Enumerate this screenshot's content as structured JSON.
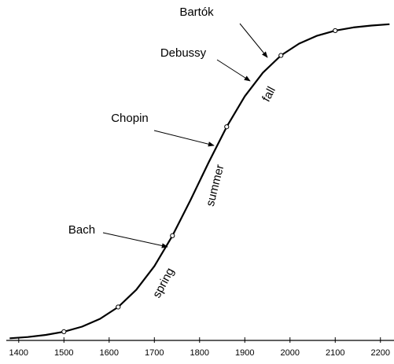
{
  "chart_data": {
    "type": "line",
    "x": [
      1380,
      1420,
      1460,
      1500,
      1540,
      1580,
      1620,
      1660,
      1700,
      1740,
      1780,
      1820,
      1860,
      1900,
      1940,
      1980,
      2020,
      2060,
      2100,
      2140,
      2180,
      2220
    ],
    "series": [
      {
        "color": "#000000",
        "values": [
          0.67,
          1.07,
          1.72,
          2.74,
          4.33,
          6.79,
          10.5,
          15.9,
          23.3,
          32.9,
          44.1,
          55.9,
          67.1,
          76.7,
          84.1,
          89.5,
          93.2,
          95.7,
          97.3,
          98.3,
          98.9,
          99.3
        ]
      }
    ],
    "markers": {
      "x": [
        1500,
        1620,
        1740,
        1860,
        1980,
        2100
      ],
      "values": [
        2.74,
        10.5,
        32.9,
        67.1,
        89.5,
        97.3
      ]
    },
    "xlim": [
      1376,
      2230
    ],
    "ylim": [
      0,
      100
    ],
    "xticks": [
      1400,
      1500,
      1600,
      1700,
      1800,
      1900,
      2000,
      2100,
      2200
    ],
    "annotations": [
      "Bartók",
      "Debussy",
      "Chopin",
      "Bach"
    ],
    "phases": [
      "spring",
      "summer",
      "fall"
    ]
  }
}
